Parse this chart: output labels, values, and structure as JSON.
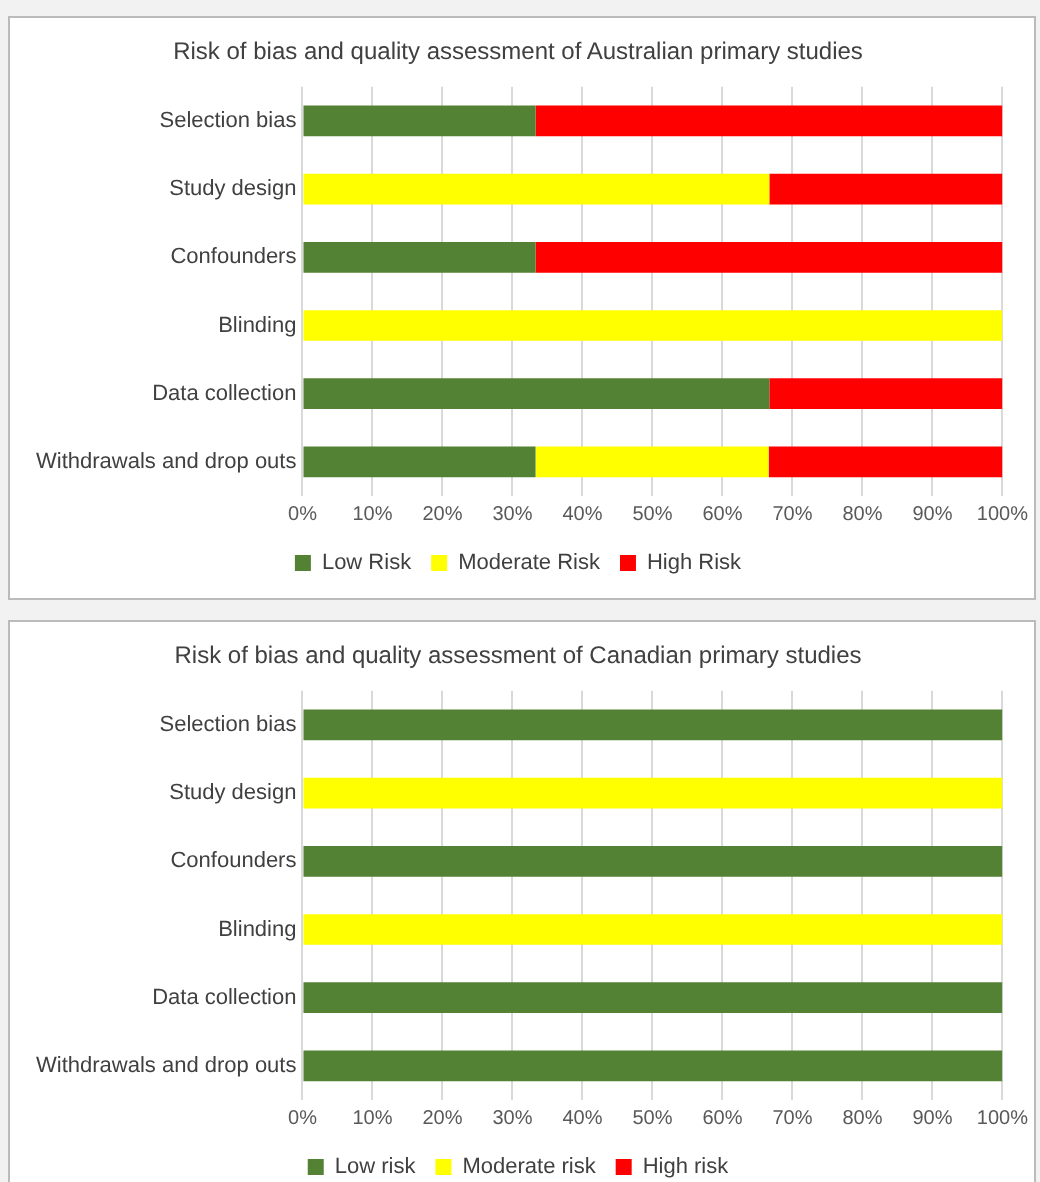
{
  "chart_data": [
    {
      "type": "bar",
      "orientation": "horizontal",
      "stacked": true,
      "title": "Risk of bias and quality assessment of Australian primary studies",
      "categories": [
        "Selection bias",
        "Study design",
        "Confounders",
        "Blinding",
        "Data collection",
        "Withdrawals and drop outs"
      ],
      "series": [
        {
          "name": "Low Risk",
          "color": "#548235",
          "values": [
            33.3,
            0,
            33.3,
            0,
            66.7,
            33.3
          ]
        },
        {
          "name": "Moderate Risk",
          "color": "#ffff00",
          "values": [
            0,
            66.7,
            0,
            100,
            0,
            33.3
          ]
        },
        {
          "name": "High Risk",
          "color": "#ff0000",
          "values": [
            66.7,
            33.3,
            66.7,
            0,
            33.3,
            33.4
          ]
        }
      ],
      "xlim": [
        0,
        100
      ],
      "xticks": [
        {
          "value": 0,
          "label": "0%"
        },
        {
          "value": 10,
          "label": "10%"
        },
        {
          "value": 20,
          "label": "20%"
        },
        {
          "value": 30,
          "label": "30%"
        },
        {
          "value": 40,
          "label": "40%"
        },
        {
          "value": 50,
          "label": "50%"
        },
        {
          "value": 60,
          "label": "60%"
        },
        {
          "value": 70,
          "label": "70%"
        },
        {
          "value": 80,
          "label": "80%"
        },
        {
          "value": 90,
          "label": "90%"
        },
        {
          "value": 100,
          "label": "100%"
        }
      ],
      "grid": "x",
      "legend": "bottom"
    },
    {
      "type": "bar",
      "orientation": "horizontal",
      "stacked": true,
      "title": "Risk of bias and quality assessment of Canadian primary studies",
      "categories": [
        "Selection bias",
        "Study design",
        "Confounders",
        "Blinding",
        "Data collection",
        "Withdrawals and drop outs"
      ],
      "series": [
        {
          "name": "Low risk",
          "color": "#548235",
          "values": [
            100,
            0,
            100,
            0,
            100,
            100
          ]
        },
        {
          "name": "Moderate risk",
          "color": "#ffff00",
          "values": [
            0,
            100,
            0,
            100,
            0,
            0
          ]
        },
        {
          "name": "High risk",
          "color": "#ff0000",
          "values": [
            0,
            0,
            0,
            0,
            0,
            0
          ]
        }
      ],
      "xlim": [
        0,
        100
      ],
      "xticks": [
        {
          "value": 0,
          "label": "0%"
        },
        {
          "value": 10,
          "label": "10%"
        },
        {
          "value": 20,
          "label": "20%"
        },
        {
          "value": 30,
          "label": "30%"
        },
        {
          "value": 40,
          "label": "40%"
        },
        {
          "value": 50,
          "label": "50%"
        },
        {
          "value": 60,
          "label": "60%"
        },
        {
          "value": 70,
          "label": "70%"
        },
        {
          "value": 80,
          "label": "80%"
        },
        {
          "value": 90,
          "label": "90%"
        },
        {
          "value": 100,
          "label": "100%"
        }
      ],
      "grid": "x",
      "legend": "bottom"
    }
  ]
}
